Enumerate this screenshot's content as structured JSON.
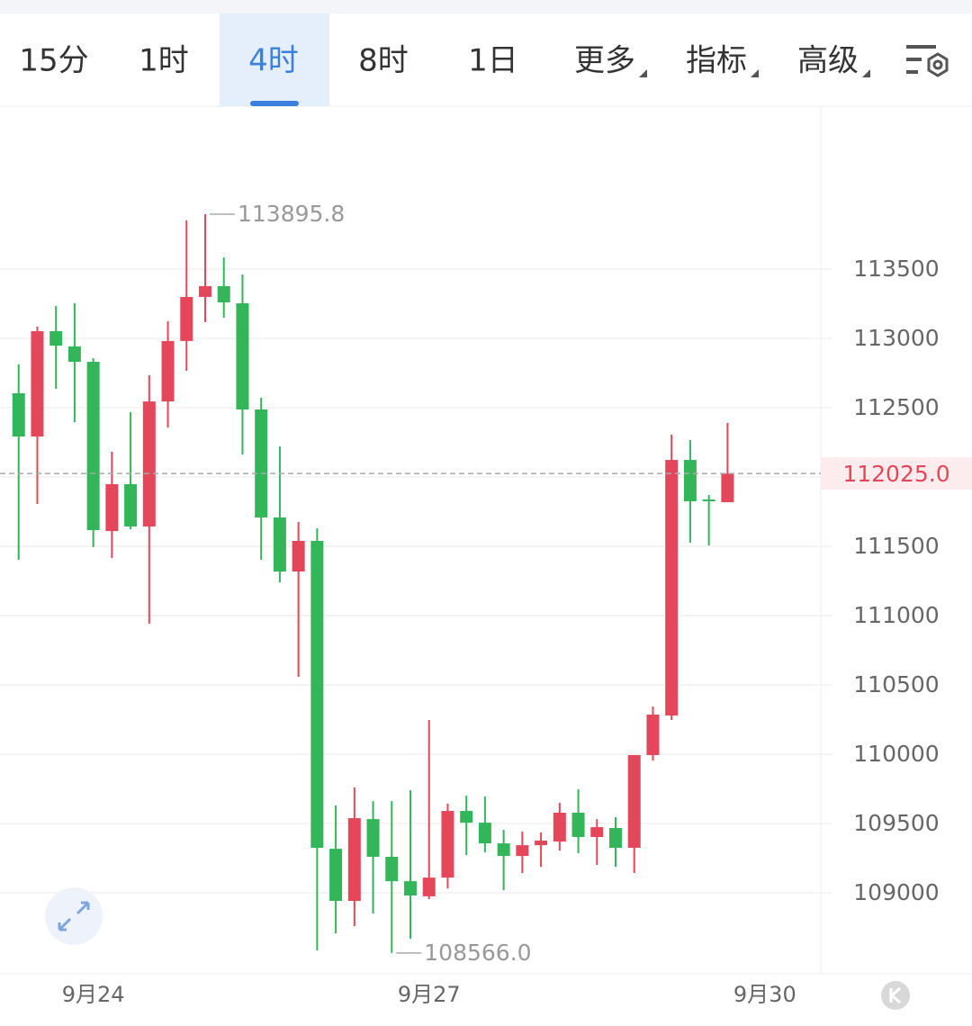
{
  "tabs": [
    "15分",
    "1时",
    "4时",
    "8时",
    "1日",
    "更多",
    "指标",
    "高级"
  ],
  "chart_data": {
    "type": "candlestick",
    "up_color": "#e5475a",
    "down_color": "#33b55a",
    "open": [
      112604,
      112292,
      113052,
      112942,
      112831,
      111610,
      111948,
      111643,
      112545,
      112981,
      113299,
      113377,
      113253,
      112487,
      111708,
      111318,
      111539,
      109318,
      108942,
      109532,
      109260,
      109084,
      108975,
      109110,
      109591,
      109506,
      109357,
      109266,
      109344,
      109370,
      109578,
      109403,
      109468,
      109325,
      109994,
      110279,
      112123,
      111838,
      111818
    ],
    "high": [
      112812,
      113084,
      113234,
      113253,
      112857,
      112182,
      112468,
      112734,
      113123,
      113851,
      113895.8,
      113584,
      113461,
      112571,
      112221,
      111675,
      111630,
      109630,
      109760,
      109662,
      109662,
      109740,
      110247,
      109643,
      109701,
      109695,
      109455,
      109442,
      109435,
      109649,
      109747,
      109532,
      109545,
      109994,
      110344,
      112305,
      112266,
      111870,
      112390
    ],
    "low": [
      111403,
      111805,
      112636,
      112396,
      111494,
      111416,
      111623,
      110942,
      112357,
      112766,
      113117,
      113149,
      112162,
      111403,
      111240,
      110558,
      108584,
      108708,
      108760,
      108851,
      108566,
      108669,
      108955,
      109032,
      109273,
      109292,
      109019,
      109143,
      109188,
      109305,
      109286,
      109201,
      109188,
      109143,
      109955,
      110247,
      111526,
      111506,
      111818
    ],
    "close": [
      112292,
      113052,
      112948,
      112831,
      111617,
      111948,
      111643,
      112545,
      112981,
      113299,
      113377,
      113260,
      112487,
      111708,
      111318,
      111539,
      109325,
      108942,
      109539,
      109260,
      109084,
      108981,
      109110,
      109591,
      109506,
      109357,
      109266,
      109344,
      109377,
      109578,
      109403,
      109474,
      109325,
      109994,
      110286,
      112123,
      111825,
      111825,
      112025
    ],
    "xlim": [
      -1,
      43
    ],
    "xticks": [
      {
        "value": 4,
        "label": "9月24"
      },
      {
        "value": 22,
        "label": "9月27"
      },
      {
        "value": 40,
        "label": "9月30"
      }
    ],
    "ylim": [
      108416,
      114675
    ],
    "yticks": [
      109000,
      109500,
      110000,
      110500,
      111000,
      111500,
      112000,
      112500,
      113000,
      113500
    ],
    "current_price": {
      "value": 112025,
      "label": "112025.0"
    },
    "annotations": [
      {
        "index": 10,
        "value": 113895.8,
        "label": "113895.8"
      },
      {
        "index": 20,
        "value": 108566,
        "label": "108566.0"
      }
    ]
  }
}
